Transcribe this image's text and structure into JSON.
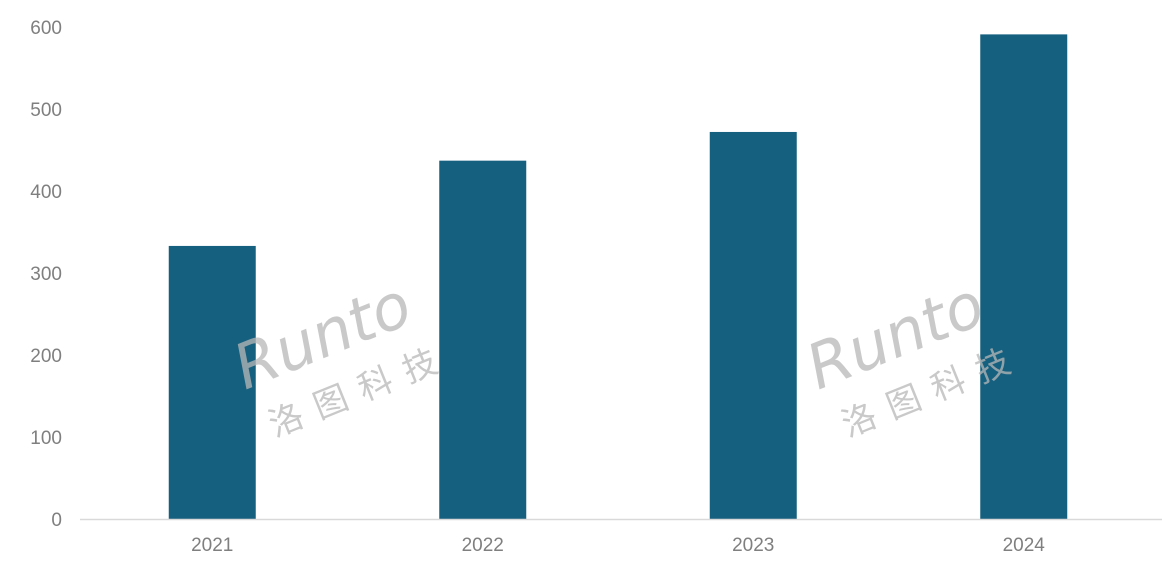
{
  "chart_data": {
    "type": "bar",
    "categories": [
      "2021",
      "2022",
      "2023",
      "2024"
    ],
    "values": [
      333,
      437,
      472,
      591
    ],
    "title": "",
    "xlabel": "",
    "ylabel": "",
    "ylim": [
      0,
      600
    ],
    "yticks": [
      0,
      100,
      200,
      300,
      400,
      500,
      600
    ],
    "grid": false,
    "legend": "none",
    "bar_color": "#16607f",
    "axis_color": "#d9d9d9",
    "tick_color": "#7f7f7f"
  },
  "watermark": {
    "text": "Runto",
    "subtext": "洛图科技"
  }
}
